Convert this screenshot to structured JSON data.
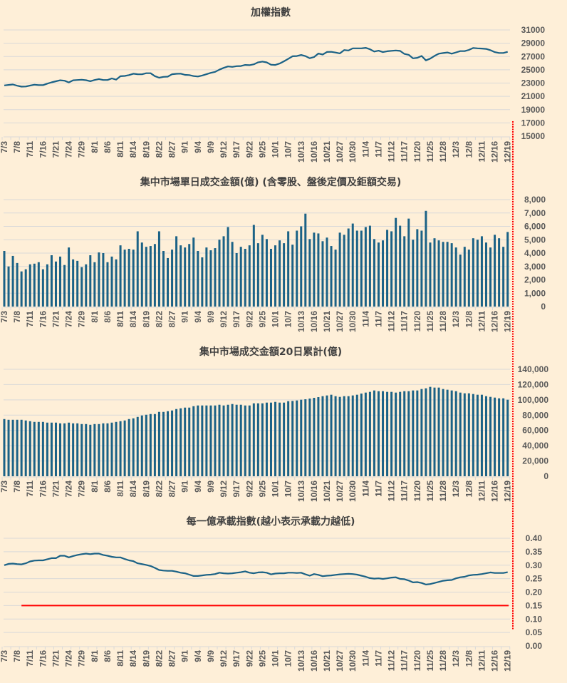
{
  "chart_data": [
    {
      "type": "line",
      "title": "加權指數",
      "y_ticks": [
        "31000",
        "29000",
        "27000",
        "25000",
        "23000",
        "21000",
        "19000",
        "17000",
        "15000"
      ],
      "ylim": [
        15000,
        31000
      ],
      "grid": true,
      "color": "#1B6286",
      "x_tick_labels": [
        "7/3",
        "7/8",
        "7/11",
        "7/16",
        "7/21",
        "7/24",
        "7/29",
        "8/1",
        "8/6",
        "8/11",
        "8/14",
        "8/19",
        "8/22",
        "8/27",
        "9/1",
        "9/4",
        "9/9",
        "9/12",
        "9/17",
        "9/22",
        "9/25",
        "10/1",
        "10/7",
        "10/13",
        "10/16",
        "10/21",
        "10/27",
        "10/30",
        "11/4",
        "11/7",
        "11/12",
        "11/17",
        "11/20",
        "11/25",
        "11/28",
        "12/3",
        "12/8",
        "12/11",
        "12/16",
        "12/19"
      ],
      "values": [
        22650,
        22720,
        22780,
        22600,
        22460,
        22480,
        22620,
        22750,
        22690,
        22690,
        22910,
        23110,
        23270,
        23420,
        23350,
        23100,
        23420,
        23460,
        23510,
        23430,
        23280,
        23460,
        23600,
        23460,
        23460,
        23700,
        23520,
        24030,
        24070,
        24200,
        24410,
        24330,
        24320,
        24480,
        24480,
        24040,
        23810,
        23930,
        23970,
        24330,
        24400,
        24420,
        24230,
        24200,
        24050,
        23990,
        24140,
        24330,
        24540,
        24690,
        25020,
        25290,
        25500,
        25440,
        25540,
        25570,
        25730,
        25690,
        25820,
        26130,
        26230,
        26110,
        25760,
        25730,
        25940,
        26270,
        26640,
        27040,
        27070,
        27230,
        27060,
        26740,
        26920,
        27450,
        27300,
        27680,
        27700,
        27600,
        27470,
        27970,
        27910,
        28230,
        28230,
        28230,
        28310,
        28090,
        27750,
        27880,
        27660,
        27790,
        27850,
        27910,
        27840,
        27390,
        27250,
        26730,
        26800,
        27080,
        26420,
        26680,
        27090,
        27420,
        27520,
        27610,
        27420,
        27620,
        27810,
        27810,
        27990,
        28280,
        28230,
        28200,
        28140,
        27950,
        27660,
        27530,
        27530,
        27700
      ]
    },
    {
      "type": "bar",
      "title": "集中市場單日成交金額(億) (含零股、盤後定價及鉅額交易)",
      "y_ticks": [
        "8,000",
        "7,000",
        "6,000",
        "5,000",
        "4,000",
        "3,000",
        "2,000",
        "1,000",
        "0"
      ],
      "ylim": [
        0,
        8000
      ],
      "grid": true,
      "color": "#1B6286",
      "x_tick_labels": [
        "7/3",
        "7/8",
        "7/11",
        "7/16",
        "7/21",
        "7/24",
        "7/29",
        "8/1",
        "8/6",
        "8/11",
        "8/14",
        "8/19",
        "8/22",
        "8/27",
        "9/1",
        "9/4",
        "9/9",
        "9/12",
        "9/17",
        "9/22",
        "9/25",
        "10/1",
        "10/7",
        "10/13",
        "10/16",
        "10/21",
        "10/27",
        "10/30",
        "11/4",
        "11/7",
        "11/12",
        "11/17",
        "11/20",
        "11/25",
        "11/28",
        "12/3",
        "12/8",
        "12/11",
        "12/16",
        "12/19"
      ],
      "values": [
        4160,
        3000,
        3790,
        3260,
        2630,
        2790,
        3160,
        3210,
        3320,
        2790,
        3160,
        3840,
        3370,
        3740,
        3110,
        4420,
        3530,
        3420,
        2950,
        3160,
        3840,
        3320,
        4050,
        4000,
        3320,
        3740,
        3530,
        4580,
        4260,
        4320,
        4260,
        5630,
        4790,
        4470,
        4530,
        4680,
        5630,
        4160,
        3630,
        4260,
        5260,
        4580,
        4420,
        4680,
        5160,
        4160,
        3680,
        4420,
        4210,
        4370,
        5000,
        5260,
        5950,
        4840,
        4000,
        4470,
        4320,
        4580,
        6110,
        4740,
        5370,
        5050,
        4320,
        4580,
        4950,
        4740,
        5630,
        4630,
        5680,
        6000,
        6950,
        5050,
        5530,
        5470,
        4890,
        5160,
        4530,
        4260,
        5530,
        5370,
        5840,
        6210,
        5680,
        5680,
        5950,
        6050,
        5050,
        4790,
        4950,
        5740,
        5630,
        6630,
        6050,
        5260,
        6580,
        5000,
        5790,
        5680,
        7160,
        4790,
        5110,
        4950,
        4840,
        4840,
        4740,
        4420,
        3890,
        4470,
        4260,
        5110,
        5000,
        5260,
        4790,
        4420,
        5370,
        5110,
        4470,
        5580
      ]
    },
    {
      "type": "bar",
      "title": "集中市場成交金額20日累計(億)",
      "y_ticks": [
        "140,000",
        "120,000",
        "100,000",
        "80,000",
        "60,000",
        "40,000",
        "20,000",
        "0"
      ],
      "ylim": [
        0,
        140000
      ],
      "grid": true,
      "color": "#1B6286",
      "x_tick_labels": [
        "7/3",
        "7/8",
        "7/11",
        "7/16",
        "7/21",
        "7/24",
        "7/29",
        "8/1",
        "8/6",
        "8/11",
        "8/14",
        "8/19",
        "8/22",
        "8/27",
        "9/1",
        "9/4",
        "9/9",
        "9/12",
        "9/17",
        "9/22",
        "9/25",
        "10/1",
        "10/7",
        "10/13",
        "10/16",
        "10/21",
        "10/27",
        "10/30",
        "11/4",
        "11/7",
        "11/12",
        "11/17",
        "11/20",
        "11/25",
        "11/28",
        "12/3",
        "12/8",
        "12/11",
        "12/16",
        "12/19"
      ],
      "values": [
        74880,
        73940,
        73940,
        73940,
        73940,
        73010,
        72070,
        71140,
        71140,
        71140,
        70200,
        70200,
        70200,
        69260,
        69260,
        70200,
        69260,
        69260,
        68330,
        68330,
        67390,
        68330,
        68330,
        69260,
        69260,
        70200,
        71140,
        72070,
        73010,
        74880,
        75820,
        77690,
        79560,
        80500,
        81430,
        81430,
        84240,
        84240,
        85180,
        86110,
        87980,
        88920,
        89860,
        89860,
        91730,
        92660,
        92660,
        92660,
        92660,
        92660,
        93600,
        92660,
        93600,
        94540,
        93600,
        93600,
        92660,
        92660,
        95470,
        95470,
        95470,
        96410,
        96410,
        97340,
        96410,
        96410,
        98280,
        98600,
        99220,
        100150,
        100780,
        101710,
        102650,
        103580,
        104830,
        105770,
        106700,
        104830,
        103900,
        104830,
        104830,
        105770,
        106700,
        108260,
        109510,
        110450,
        112320,
        111380,
        111380,
        110450,
        110450,
        109510,
        110450,
        111380,
        111380,
        112320,
        112320,
        114190,
        115130,
        117000,
        116060,
        116060,
        114190,
        113260,
        112320,
        111380,
        109510,
        108580,
        108580,
        107640,
        106700,
        106700,
        104830,
        103900,
        102960,
        102020,
        102020,
        100150
      ]
    },
    {
      "type": "line",
      "title": "每一億承載指數(越小表示承載力越低)",
      "y_ticks": [
        "0.40",
        "0.35",
        "0.30",
        "0.25",
        "0.20",
        "0.15",
        "0.10",
        "0.05",
        "0.00"
      ],
      "ylim": [
        0,
        0.4
      ],
      "grid": true,
      "color": "#1B6286",
      "reference_line": {
        "value": 0.15,
        "color": "#FF0000"
      },
      "x_tick_labels": [
        "7/3",
        "7/8",
        "7/11",
        "7/16",
        "7/21",
        "7/24",
        "7/29",
        "8/1",
        "8/6",
        "8/11",
        "8/14",
        "8/19",
        "8/22",
        "8/27",
        "9/1",
        "9/4",
        "9/9",
        "9/12",
        "9/17",
        "9/22",
        "9/25",
        "10/1",
        "10/7",
        "10/13",
        "10/16",
        "10/21",
        "10/27",
        "10/30",
        "11/4",
        "11/7",
        "11/12",
        "11/17",
        "11/20",
        "11/25",
        "11/28",
        "12/3",
        "12/8",
        "12/11",
        "12/16",
        "12/19"
      ],
      "values": [
        0.3,
        0.305,
        0.306,
        0.304,
        0.303,
        0.307,
        0.314,
        0.317,
        0.318,
        0.318,
        0.322,
        0.326,
        0.326,
        0.335,
        0.335,
        0.329,
        0.334,
        0.338,
        0.341,
        0.343,
        0.341,
        0.343,
        0.343,
        0.338,
        0.335,
        0.331,
        0.329,
        0.329,
        0.323,
        0.318,
        0.315,
        0.307,
        0.304,
        0.301,
        0.297,
        0.29,
        0.282,
        0.28,
        0.279,
        0.279,
        0.276,
        0.272,
        0.27,
        0.265,
        0.26,
        0.26,
        0.262,
        0.264,
        0.265,
        0.267,
        0.272,
        0.27,
        0.269,
        0.27,
        0.272,
        0.274,
        0.277,
        0.272,
        0.27,
        0.273,
        0.274,
        0.272,
        0.266,
        0.269,
        0.27,
        0.27,
        0.272,
        0.272,
        0.271,
        0.272,
        0.266,
        0.261,
        0.267,
        0.264,
        0.259,
        0.261,
        0.262,
        0.264,
        0.266,
        0.267,
        0.268,
        0.267,
        0.265,
        0.261,
        0.257,
        0.252,
        0.25,
        0.251,
        0.249,
        0.251,
        0.254,
        0.255,
        0.249,
        0.248,
        0.243,
        0.236,
        0.237,
        0.234,
        0.228,
        0.23,
        0.234,
        0.238,
        0.242,
        0.244,
        0.245,
        0.251,
        0.255,
        0.257,
        0.262,
        0.264,
        0.265,
        0.267,
        0.27,
        0.273,
        0.271,
        0.271,
        0.271,
        0.274
      ]
    }
  ]
}
